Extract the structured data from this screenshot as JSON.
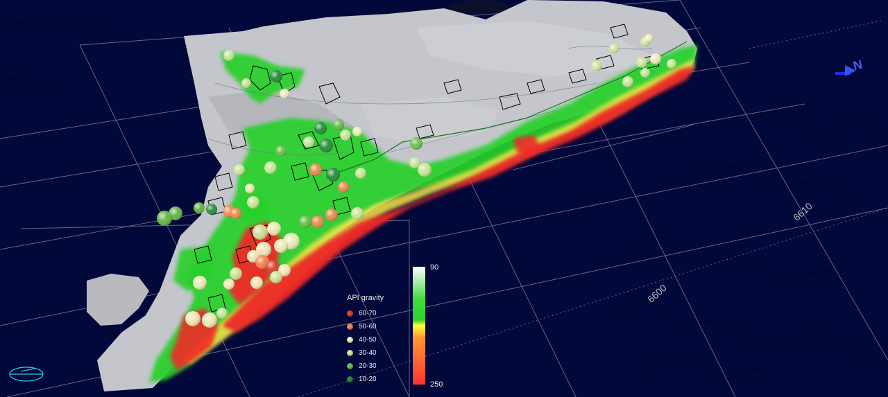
{
  "legend": {
    "title": "API gravity",
    "items": [
      {
        "label": "60-70",
        "color": "#d9442a"
      },
      {
        "label": "50-60",
        "color": "#ee8a52"
      },
      {
        "label": "40-50",
        "color": "#f2eebc"
      },
      {
        "label": "30-40",
        "color": "#cde89a"
      },
      {
        "label": "20-30",
        "color": "#6cbf4a"
      },
      {
        "label": "10-20",
        "color": "#2a8a3e"
      }
    ]
  },
  "colorbar": {
    "max_label": "90",
    "min_label": "250",
    "colors": [
      "#ffffff",
      "#3cdc3c",
      "#ffff33",
      "#ff9933",
      "#ff3333"
    ]
  },
  "grid_labels": {
    "northing_1": "6600",
    "northing_2": "6610"
  },
  "north_arrow_label": "N",
  "colors": {
    "background": "#03083a",
    "land_surface": "#c4c6cb",
    "grid_line": "#b0b4c4"
  }
}
